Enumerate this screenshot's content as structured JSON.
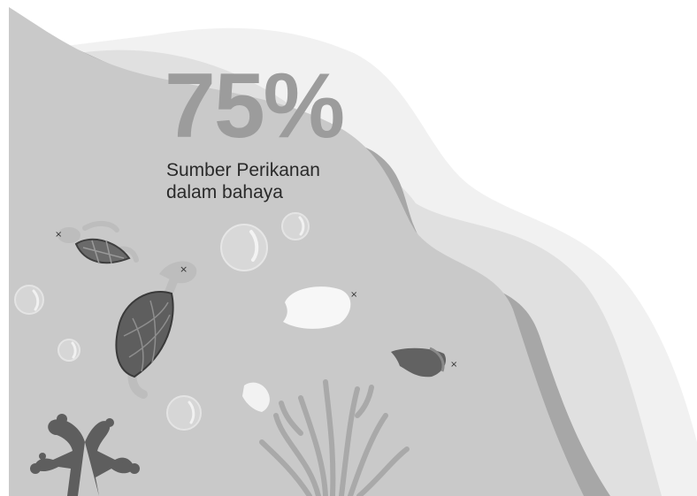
{
  "infographic": {
    "stat_value": "75%",
    "caption_line1": "Sumber Perikanan",
    "caption_line2": "dalam bahaya"
  },
  "illustration": {
    "icons": [
      "sea-turtle-icon",
      "fish-icon",
      "coral-icon",
      "seaweed-icon",
      "bubble-icon"
    ],
    "palette": {
      "water_light": "#f1f1f1",
      "water_mid": "#e0e0e0",
      "water_main": "#c9c9c9",
      "wave_dark": "#a7a7a7",
      "creature_dark": "#5e5e5e",
      "creature_mid": "#8e8e8e",
      "creature_light": "#f7f7f7"
    }
  }
}
